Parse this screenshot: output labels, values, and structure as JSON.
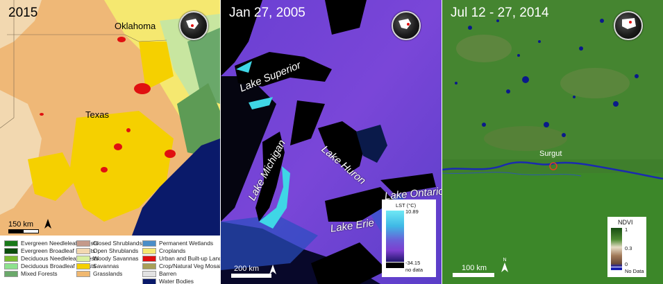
{
  "panels": {
    "left": {
      "title": "2015",
      "labels": {
        "oklahoma": "Oklahoma",
        "texas": "Texas"
      },
      "scale_label": "150 km",
      "legend": [
        {
          "label": "Evergreen Needleleaf Forests",
          "color": "#1a7a1a"
        },
        {
          "label": "Evergreen Broadleaf Forests",
          "color": "#0b4d0b"
        },
        {
          "label": "Deciduous Needleleaf Forests",
          "color": "#7cbd32"
        },
        {
          "label": "Deciduous Broadleaf Forests",
          "color": "#8ee28e"
        },
        {
          "label": "Mixed Forests",
          "color": "#6aa86a"
        },
        {
          "label": "Closed Shrublands",
          "color": "#c49a8a"
        },
        {
          "label": "Open Shrublands",
          "color": "#f2d8b0"
        },
        {
          "label": "Woody Savannas",
          "color": "#d8f0a0"
        },
        {
          "label": "Savannas",
          "color": "#f5d000"
        },
        {
          "label": "Grasslands",
          "color": "#f0b870"
        },
        {
          "label": "Permanent Wetlands",
          "color": "#4a8ec8"
        },
        {
          "label": "Croplands",
          "color": "#f5e870"
        },
        {
          "label": "Urban and Built-up Lands",
          "color": "#e01010"
        },
        {
          "label": "Crop/Natural Veg Mosaics",
          "color": "#a8a058"
        },
        {
          "label": "Barren",
          "color": "#e2e2e2"
        },
        {
          "label": "Water Bodies",
          "color": "#0a1a6a"
        }
      ]
    },
    "middle": {
      "title": "Jan 27, 2005",
      "lakes": {
        "superior": "Lake Superior",
        "michigan": "Lake Michigan",
        "huron": "Lake Huron",
        "ontario": "Lake Ontario",
        "erie": "Lake Erie"
      },
      "scale_label": "200 km",
      "colorbar": {
        "title": "LST (°C)",
        "max": "10.89",
        "min": "-34.15",
        "nodata": "no data"
      }
    },
    "right": {
      "title": "Jul 12 - 27, 2014",
      "city": "Surgut",
      "scale_label": "100 km",
      "colorbar": {
        "title": "NDVI",
        "v1": "1",
        "v2": "0.3",
        "v3": "0",
        "nodata": "No Data"
      }
    }
  },
  "north_label": "N"
}
